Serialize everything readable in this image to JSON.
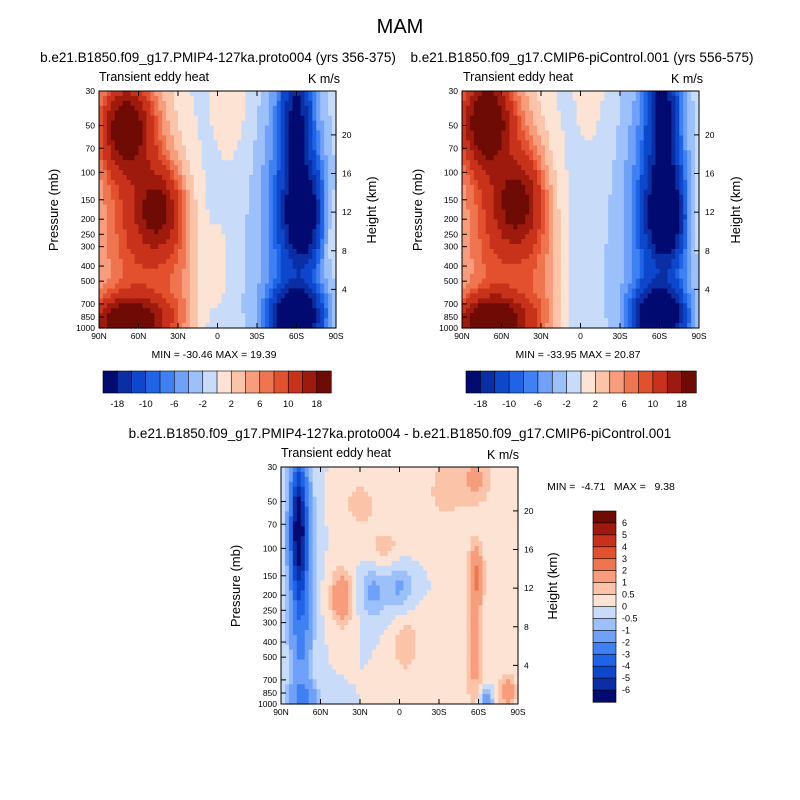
{
  "figure": {
    "title": "MAM",
    "colorscale_range": [
      -18,
      18
    ],
    "colorscale_diff_range": [
      -6,
      6
    ]
  },
  "chart_data": [
    {
      "type": "heatmap",
      "title": "b.e21.B1850.f09_g17.PMIP4-127ka.proto004 (yrs 356-375)",
      "left_label": "Transient eddy heat",
      "right_label": "K m/s",
      "xlabel": "",
      "ylabel": "Pressure (mb)",
      "y2label": "Height (km)",
      "x_ticks": [
        "90N",
        "60N",
        "30N",
        "0",
        "30S",
        "60S",
        "90S"
      ],
      "y_ticks": [
        "30",
        "50",
        "70",
        "100",
        "150",
        "200",
        "250",
        "300",
        "400",
        "500",
        "700",
        "850",
        "1000"
      ],
      "y2_ticks": [
        "20",
        "16",
        "12",
        "8",
        "4"
      ],
      "stats": "MIN = -30.46   MAX =  19.39",
      "min": -30.46,
      "max": 19.39,
      "colorbar_labels": [
        "-18",
        "-10",
        "-6",
        "-2",
        "2",
        "6",
        "10",
        "18"
      ],
      "features": [
        {
          "lat": 70,
          "lev": 0.15,
          "amp": 18,
          "sx": 13,
          "sy": 0.13
        },
        {
          "lat": 68,
          "lev": 0.97,
          "amp": 20,
          "sx": 20,
          "sy": 0.07
        },
        {
          "lat": 45,
          "lev": 0.5,
          "amp": 13,
          "sx": 12,
          "sy": 0.12
        },
        {
          "lat": 60,
          "lev": 0.55,
          "amp": 10,
          "sx": 24,
          "sy": 0.45
        },
        {
          "lat": 28,
          "lev": 0.8,
          "amp": 4,
          "sx": 12,
          "sy": 0.25
        },
        {
          "lat": -10,
          "lev": 0.0,
          "amp": 2.5,
          "sx": 14,
          "sy": 0.35
        },
        {
          "lat": -2,
          "lev": 0.75,
          "amp": 2,
          "sx": 6,
          "sy": 0.15
        },
        {
          "lat": -65,
          "lev": 0.52,
          "amp": -20,
          "sx": 10,
          "sy": 0.14
        },
        {
          "lat": -60,
          "lev": 0.95,
          "amp": -25,
          "sx": 13,
          "sy": 0.08
        },
        {
          "lat": -60,
          "lev": 0.1,
          "amp": -14,
          "sx": 8,
          "sy": 0.18
        },
        {
          "lat": -58,
          "lev": 0.55,
          "amp": -9,
          "sx": 18,
          "sy": 0.5
        },
        {
          "lat": -85,
          "lev": 0.58,
          "amp": 3,
          "sx": 6,
          "sy": 0.12
        },
        {
          "lat": 5,
          "lev": 0.5,
          "amp": -2.0,
          "sx": 30,
          "sy": 0.8
        }
      ]
    },
    {
      "type": "heatmap",
      "title": "b.e21.B1850.f09_g17.CMIP6-piControl.001 (yrs 556-575)",
      "left_label": "Transient eddy heat",
      "right_label": "K m/s",
      "xlabel": "",
      "ylabel": "Pressure (mb)",
      "y2label": "Height (km)",
      "x_ticks": [
        "90N",
        "60N",
        "30N",
        "0",
        "30S",
        "60S",
        "90S"
      ],
      "y_ticks": [
        "30",
        "50",
        "70",
        "100",
        "150",
        "200",
        "250",
        "300",
        "400",
        "500",
        "700",
        "850",
        "1000"
      ],
      "y2_ticks": [
        "20",
        "16",
        "12",
        "8",
        "4"
      ],
      "stats": "MIN = -33.95   MAX =  20.87",
      "min": -33.95,
      "max": 20.87,
      "colorbar_labels": [
        "-18",
        "-10",
        "-6",
        "-2",
        "2",
        "6",
        "10",
        "18"
      ],
      "features": [
        {
          "lat": 72,
          "lev": 0.12,
          "amp": 20,
          "sx": 13,
          "sy": 0.14
        },
        {
          "lat": 68,
          "lev": 0.97,
          "amp": 21,
          "sx": 20,
          "sy": 0.07
        },
        {
          "lat": 48,
          "lev": 0.48,
          "amp": 12,
          "sx": 12,
          "sy": 0.12
        },
        {
          "lat": 60,
          "lev": 0.55,
          "amp": 10,
          "sx": 24,
          "sy": 0.45
        },
        {
          "lat": 28,
          "lev": 0.8,
          "amp": 4,
          "sx": 12,
          "sy": 0.25
        },
        {
          "lat": -8,
          "lev": 0.0,
          "amp": 2,
          "sx": 14,
          "sy": 0.35
        },
        {
          "lat": 38,
          "lev": 0.35,
          "amp": 2.5,
          "sx": 10,
          "sy": 0.15
        },
        {
          "lat": -65,
          "lev": 0.52,
          "amp": -21,
          "sx": 10,
          "sy": 0.14
        },
        {
          "lat": -60,
          "lev": 0.95,
          "amp": -26,
          "sx": 13,
          "sy": 0.08
        },
        {
          "lat": -63,
          "lev": 0.08,
          "amp": -16,
          "sx": 8,
          "sy": 0.2
        },
        {
          "lat": -58,
          "lev": 0.55,
          "amp": -9,
          "sx": 18,
          "sy": 0.5
        },
        {
          "lat": -85,
          "lev": 0.5,
          "amp": 3,
          "sx": 6,
          "sy": 0.12
        },
        {
          "lat": 5,
          "lev": 0.5,
          "amp": -2.0,
          "sx": 30,
          "sy": 0.8
        }
      ]
    },
    {
      "type": "heatmap",
      "title": "b.e21.B1850.f09_g17.PMIP4-127ka.proto004 - b.e21.B1850.f09_g17.CMIP6-piControl.001",
      "left_label": "Transient eddy heat",
      "right_label": "K m/s",
      "xlabel": "",
      "ylabel": "Pressure (mb)",
      "y2label": "Height (km)",
      "x_ticks": [
        "90N",
        "60N",
        "30N",
        "0",
        "30S",
        "60S",
        "90S"
      ],
      "y_ticks": [
        "30",
        "50",
        "70",
        "100",
        "150",
        "200",
        "250",
        "300",
        "400",
        "500",
        "700",
        "850",
        "1000"
      ],
      "y2_ticks": [
        "20",
        "16",
        "12",
        "8",
        "4"
      ],
      "stats": "MIN =  -4.71   MAX =   9.38",
      "min": -4.71,
      "max": 9.38,
      "colorbar_labels": [
        "6",
        "5",
        "4",
        "3",
        "2",
        "1",
        "0.5",
        "0",
        "-0.5",
        "-1",
        "-2",
        "-3",
        "-4",
        "-5",
        "-6"
      ],
      "features": [
        {
          "lat": 77,
          "lev": 0.25,
          "amp": -5,
          "sx": 4,
          "sy": 0.18
        },
        {
          "lat": 75,
          "lev": 0.45,
          "amp": -3,
          "sx": 6,
          "sy": 0.4
        },
        {
          "lat": 72,
          "lev": 0.97,
          "amp": -1.5,
          "sx": 8,
          "sy": 0.04
        },
        {
          "lat": 44,
          "lev": 0.55,
          "amp": 1.8,
          "sx": 6,
          "sy": 0.08
        },
        {
          "lat": 20,
          "lev": 0.52,
          "amp": -1.2,
          "sx": 7,
          "sy": 0.08
        },
        {
          "lat": 0,
          "lev": 0.5,
          "amp": -1.2,
          "sx": 7,
          "sy": 0.08
        },
        {
          "lat": -58,
          "lev": 0.46,
          "amp": 2.2,
          "sx": 4,
          "sy": 0.1
        },
        {
          "lat": -57,
          "lev": 0.8,
          "amp": 1.3,
          "sx": 5,
          "sy": 0.15
        },
        {
          "lat": -58,
          "lev": 0.05,
          "amp": 1.2,
          "sx": 8,
          "sy": 0.08
        },
        {
          "lat": -35,
          "lev": 0.1,
          "amp": 0.8,
          "sx": 10,
          "sy": 0.1
        },
        {
          "lat": 10,
          "lev": 0.35,
          "amp": 0.7,
          "sx": 12,
          "sy": 0.08
        },
        {
          "lat": 30,
          "lev": 0.15,
          "amp": 0.7,
          "sx": 10,
          "sy": 0.08
        },
        {
          "lat": -5,
          "lev": 0.75,
          "amp": 0.8,
          "sx": 8,
          "sy": 0.1
        },
        {
          "lat": -82,
          "lev": 0.95,
          "amp": 1.5,
          "sx": 5,
          "sy": 0.05
        },
        {
          "lat": -66,
          "lev": 0.98,
          "amp": -2.0,
          "sx": 3,
          "sy": 0.03
        }
      ]
    }
  ]
}
